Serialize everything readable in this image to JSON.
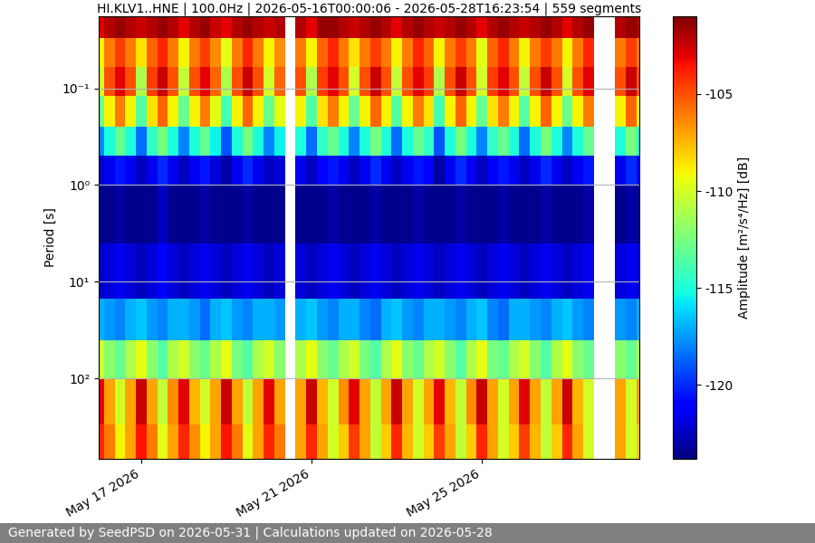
{
  "chart_data": {
    "type": "heatmap",
    "title": "HI.KLV1..HNE | 100.0Hz | 2026-05-16T00:00:06 - 2026-05-28T16:23:54 | 559 segments",
    "ylabel": "Period [s]",
    "footer": "Generated by SeedPSD on 2026-05-31 | Calculations updated on 2026-05-28",
    "log": "y",
    "grid": "y",
    "xlim": [
      "2026-05-16T00:00:06",
      "2026-05-28T16:23:54"
    ],
    "xticks": [
      {
        "value": "2026-05-17",
        "label": "May 17 2026"
      },
      {
        "value": "2026-05-21",
        "label": "May 21 2026"
      },
      {
        "value": "2026-05-25",
        "label": "May 25 2026"
      }
    ],
    "ylim": [
      680,
      0.018
    ],
    "yticks": [
      {
        "value": 0.1,
        "label": "10⁻¹"
      },
      {
        "value": 1,
        "label": "10⁰"
      },
      {
        "value": 10,
        "label": "10¹"
      },
      {
        "value": 100,
        "label": "10²"
      }
    ],
    "x_edges": [
      "2026-05-16T00:00:06",
      "2026-05-16T03:00",
      "2026-05-16T09:00",
      "2026-05-16T15:00",
      "2026-05-16T21:00",
      "2026-05-17T03:00",
      "2026-05-17T09:00",
      "2026-05-17T15:00",
      "2026-05-17T21:00",
      "2026-05-18T03:00",
      "2026-05-18T09:00",
      "2026-05-18T15:00",
      "2026-05-18T21:00",
      "2026-05-19T03:00",
      "2026-05-19T09:00",
      "2026-05-19T15:00",
      "2026-05-19T21:00",
      "2026-05-20T03:00",
      "2026-05-20T09:00",
      "2026-05-20T15:00",
      "2026-05-20T21:00",
      "2026-05-21T03:00",
      "2026-05-21T09:00",
      "2026-05-21T15:00",
      "2026-05-21T21:00",
      "2026-05-22T03:00",
      "2026-05-22T09:00",
      "2026-05-22T15:00",
      "2026-05-22T21:00",
      "2026-05-23T03:00",
      "2026-05-23T09:00",
      "2026-05-23T15:00",
      "2026-05-23T21:00",
      "2026-05-24T03:00",
      "2026-05-24T09:00",
      "2026-05-24T15:00",
      "2026-05-24T21:00",
      "2026-05-25T03:00",
      "2026-05-25T09:00",
      "2026-05-25T15:00",
      "2026-05-25T21:00",
      "2026-05-26T03:00",
      "2026-05-26T09:00",
      "2026-05-26T15:00",
      "2026-05-26T21:00",
      "2026-05-27T03:00",
      "2026-05-27T09:00",
      "2026-05-27T15:00",
      "2026-05-27T21:00",
      "2026-05-28T03:00",
      "2026-05-28T09:00",
      "2026-05-28T15:00",
      "2026-05-28T16:23:54"
    ],
    "y_edges": [
      0.018,
      0.03,
      0.06,
      0.12,
      0.25,
      0.5,
      1,
      4,
      15,
      40,
      100,
      300,
      680
    ],
    "cells": [
      [
        -103,
        -102,
        -101.5,
        -102,
        -102.5,
        -102,
        -101.5,
        -102,
        -103,
        -102,
        -101.5,
        -102.5,
        -103,
        -102,
        -101.5,
        -102,
        -102.5,
        -102,
        null,
        -102,
        -103,
        -101.5,
        -101.5,
        -102,
        -102.5,
        -102,
        -101.5,
        -102,
        -103,
        -102,
        -101.5,
        -102,
        -102.5,
        -102,
        -101.5,
        -102,
        -103,
        -102,
        -101.5,
        -102,
        -102.5,
        -102,
        -101.5,
        -102,
        -103,
        -102,
        -101.5,
        null,
        null,
        -102,
        -101.5,
        -102
      ],
      [
        -109,
        -106,
        -104.5,
        -106,
        -108.5,
        -105.5,
        -104,
        -106,
        -109,
        -106,
        -104.5,
        -106.5,
        -109.5,
        -106,
        -104,
        -106,
        -109,
        -106.5,
        null,
        -106,
        -109,
        -105.5,
        -104,
        -106,
        -108.5,
        -106,
        -104.5,
        -106,
        -109,
        -106,
        -104,
        -105.5,
        -109,
        -106,
        -104.5,
        -106,
        -109.5,
        -105.5,
        -104,
        -106,
        -109,
        -106,
        -104.5,
        -106,
        -109,
        -106,
        -104,
        null,
        null,
        -106,
        -104.5,
        -106
      ],
      [
        -110,
        -105,
        -103,
        -105,
        -111,
        -104.5,
        -102.5,
        -105,
        -110.5,
        -105,
        -103,
        -105.5,
        -111,
        -105,
        -102.5,
        -105,
        -110,
        -105.5,
        null,
        -105,
        -111,
        -104.5,
        -103,
        -105,
        -110,
        -105,
        -102.5,
        -105,
        -110.5,
        -105,
        -103,
        -104.5,
        -111,
        -105,
        -102.5,
        -105,
        -110,
        -104.5,
        -103,
        -105,
        -110.5,
        -105,
        -102.5,
        -105,
        -110,
        -105,
        -103,
        null,
        null,
        -105,
        -102.5,
        -105
      ],
      [
        -113,
        -109,
        -106,
        -109,
        -113.5,
        -108.5,
        -105.5,
        -109,
        -113,
        -109,
        -106,
        -109.5,
        -114,
        -109,
        -105.5,
        -109,
        -113,
        -109.5,
        null,
        -109,
        -113.5,
        -108.5,
        -106,
        -109,
        -113,
        -109,
        -105.5,
        -109,
        -113.5,
        -109,
        -106,
        -108.5,
        -114,
        -109,
        -105.5,
        -109,
        -113,
        -108.5,
        -106,
        -109,
        -113.5,
        -109,
        -105.5,
        -109,
        -113,
        -109,
        -106,
        null,
        null,
        -109,
        -105.5,
        -109
      ],
      [
        -118,
        -115,
        -113,
        -115,
        -118.5,
        -114.5,
        -112.5,
        -115,
        -118,
        -115,
        -113,
        -115.5,
        -119,
        -115,
        -112.5,
        -115,
        -118,
        -115.5,
        null,
        -115,
        -118.5,
        -114.5,
        -113,
        -115,
        -118,
        -115,
        -112.5,
        -115,
        -118.5,
        -115,
        -113,
        -114.5,
        -119,
        -115,
        -112.5,
        -115,
        -118,
        -114.5,
        -113,
        -115,
        -118.5,
        -115,
        -112.5,
        -115,
        -118,
        -115,
        -113,
        null,
        null,
        -115,
        -112.5,
        -115
      ],
      [
        -122.5,
        -121.5,
        -120.5,
        -121.5,
        -122.5,
        -121.5,
        -120,
        -121.5,
        -122.5,
        -121.5,
        -120.5,
        -122,
        -123,
        -121.5,
        -120,
        -121.5,
        -122.5,
        -122,
        null,
        -121.5,
        -122.5,
        -121,
        -120.5,
        -121.5,
        -122.5,
        -121.5,
        -120,
        -121.5,
        -122.5,
        -121.5,
        -120.5,
        -121,
        -123,
        -121.5,
        -120,
        -121.5,
        -122.5,
        -121,
        -120.5,
        -121.5,
        -122.5,
        -121.5,
        -120,
        -121.5,
        -122.5,
        -121.5,
        -120.5,
        null,
        null,
        -121.5,
        -120,
        -121.5
      ],
      [
        -123.5,
        -123.5,
        -123,
        -123.5,
        -123.5,
        -123.5,
        -122.5,
        -123.5,
        -123.5,
        -123.5,
        -123,
        -123.5,
        -123.5,
        -123.5,
        -123,
        -123.5,
        -123.5,
        -123.5,
        null,
        -123.5,
        -123.5,
        -123.5,
        -123,
        -123.5,
        -123.5,
        -123.5,
        -123,
        -123.5,
        -123.5,
        -123.5,
        -123,
        -123.5,
        -123.5,
        -123.5,
        -123,
        -123.5,
        -123.5,
        -123.5,
        -123,
        -123.5,
        -123.5,
        -123.5,
        -123,
        -123.5,
        -123.5,
        -123.5,
        -123,
        null,
        null,
        -123.5,
        -123,
        -123.5
      ],
      [
        -122.5,
        -122,
        -121.5,
        -122,
        -122.5,
        -122,
        -121,
        -122,
        -122.5,
        -122,
        -121.5,
        -122,
        -122.5,
        -122,
        -121.5,
        -122,
        -122.5,
        -122,
        null,
        -122,
        -122.5,
        -122,
        -121.5,
        -122,
        -122.5,
        -122,
        -121.5,
        -122,
        -122.5,
        -122,
        -121.5,
        -122,
        -122.5,
        -122,
        -121.5,
        -122,
        -122.5,
        -122,
        -121.5,
        -122,
        -122.5,
        -122,
        -121.5,
        -122,
        -122.5,
        -122,
        -121.5,
        null,
        null,
        -122,
        -121.5,
        -122
      ],
      [
        -117,
        -117.5,
        -118,
        -117,
        -116.5,
        -117.5,
        -118,
        -117,
        -117,
        -117.5,
        -118.5,
        -117,
        -116.5,
        -117.5,
        -118,
        -117,
        -117,
        -117.5,
        null,
        -117,
        -116.5,
        -117.5,
        -118,
        -117,
        -117,
        -118,
        -118.5,
        -117,
        -116.5,
        -117.5,
        -118,
        -117,
        -117,
        -117.5,
        -118,
        -117,
        -116.5,
        -118,
        -118.5,
        -117,
        -117,
        -117.5,
        -118,
        -117,
        -116.5,
        -117.5,
        -118,
        null,
        null,
        -117.5,
        -118,
        -117
      ],
      [
        -110,
        -112,
        -113,
        -111,
        -109.5,
        -112,
        -113.5,
        -111,
        -110,
        -112,
        -113,
        -111,
        -109.5,
        -112.5,
        -113.5,
        -111,
        -110,
        -112,
        null,
        -111,
        -109.5,
        -112,
        -113,
        -111,
        -110,
        -112.5,
        -113.5,
        -111,
        -109.5,
        -112,
        -113,
        -111,
        -110,
        -112,
        -113.5,
        -111,
        -109.5,
        -112.5,
        -113,
        -111,
        -110,
        -112,
        -113.5,
        -111,
        -109.5,
        -112,
        -113,
        null,
        null,
        -112,
        -113,
        -111
      ],
      [
        -103,
        -107,
        -110,
        -107,
        -102.5,
        -107,
        -110.5,
        -106.5,
        -103,
        -107.5,
        -110,
        -107,
        -102.5,
        -107,
        -110.5,
        -107,
        -103,
        -107,
        null,
        -107,
        -102.5,
        -107.5,
        -110,
        -106.5,
        -103,
        -107,
        -110.5,
        -107,
        -102.5,
        -107,
        -110,
        -107,
        -103,
        -107.5,
        -110.5,
        -106.5,
        -102.5,
        -107,
        -110,
        -107,
        -103,
        -107,
        -110.5,
        -107,
        -102.5,
        -107.5,
        -110,
        null,
        null,
        -107,
        -110,
        -107
      ],
      [
        -104,
        -106,
        -109,
        -107,
        -103.5,
        -106,
        -109.5,
        -107,
        -104,
        -106.5,
        -109,
        -107,
        -103.5,
        -106,
        -109.5,
        -107,
        -104,
        -106,
        null,
        -107,
        -104,
        -107,
        -110,
        -108,
        -104.5,
        -107,
        -110.5,
        -108,
        -104,
        -107.5,
        -110,
        -108,
        -104.5,
        -107,
        -110.5,
        -108,
        -104,
        -107,
        -110,
        -108,
        -104.5,
        -107.5,
        -110.5,
        -108,
        -104,
        -107,
        -110,
        null,
        null,
        -107,
        -110,
        -108
      ]
    ],
    "colorbar": {
      "label": "Amplitude [m²/s⁴/Hz] [dB]",
      "range": [
        -123.8,
        -101
      ],
      "ticks": [
        -105,
        -110,
        -115,
        -120
      ]
    }
  }
}
